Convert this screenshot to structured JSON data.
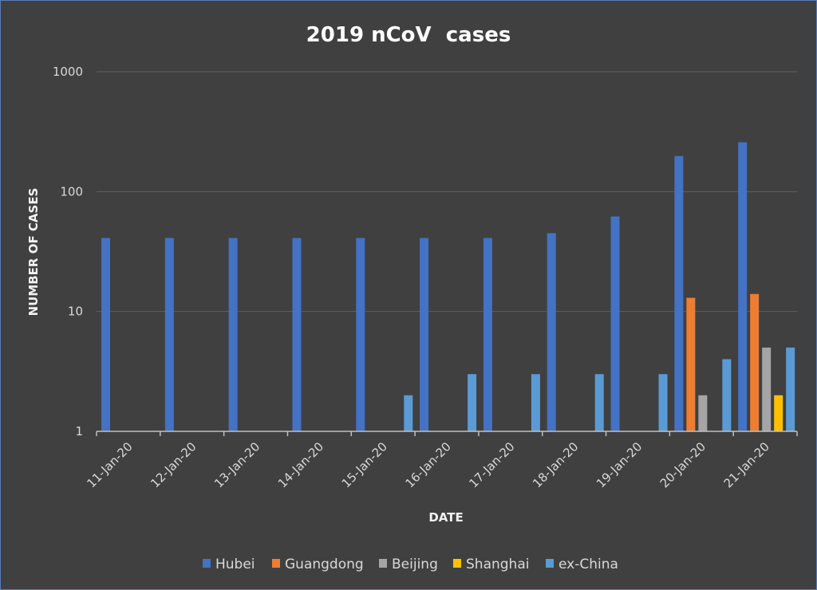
{
  "chart_data": {
    "type": "bar",
    "title": "2019 nCoV  cases",
    "xlabel": "DATE",
    "ylabel": "NUMBER OF CASES",
    "y_scale": "log",
    "ylim": [
      1,
      1000
    ],
    "yticks": [
      "1",
      "10",
      "100",
      "1000"
    ],
    "grid": true,
    "legend_position": "bottom",
    "categories": [
      "11-Jan-20",
      "12-Jan-20",
      "13-Jan-20",
      "14-Jan-20",
      "15-Jan-20",
      "16-Jan-20",
      "17-Jan-20",
      "18-Jan-20",
      "19-Jan-20",
      "20-Jan-20",
      "21-Jan-20"
    ],
    "series": [
      {
        "name": "Hubei",
        "color": "#4472c4",
        "values": [
          41,
          41,
          41,
          41,
          41,
          41,
          41,
          45,
          62,
          198,
          258
        ]
      },
      {
        "name": "Guangdong",
        "color": "#ed7d31",
        "values": [
          null,
          null,
          null,
          null,
          null,
          null,
          null,
          null,
          null,
          13,
          14
        ]
      },
      {
        "name": "Beijing",
        "color": "#a5a5a5",
        "values": [
          null,
          null,
          null,
          null,
          null,
          null,
          null,
          null,
          null,
          2,
          5
        ]
      },
      {
        "name": "Shanghai",
        "color": "#ffc000",
        "values": [
          null,
          null,
          null,
          null,
          null,
          null,
          null,
          null,
          null,
          null,
          2
        ]
      },
      {
        "name": "ex-China",
        "color": "#5b9bd5",
        "values": [
          null,
          null,
          null,
          null,
          2,
          3,
          3,
          3,
          3,
          4,
          5
        ]
      }
    ]
  }
}
